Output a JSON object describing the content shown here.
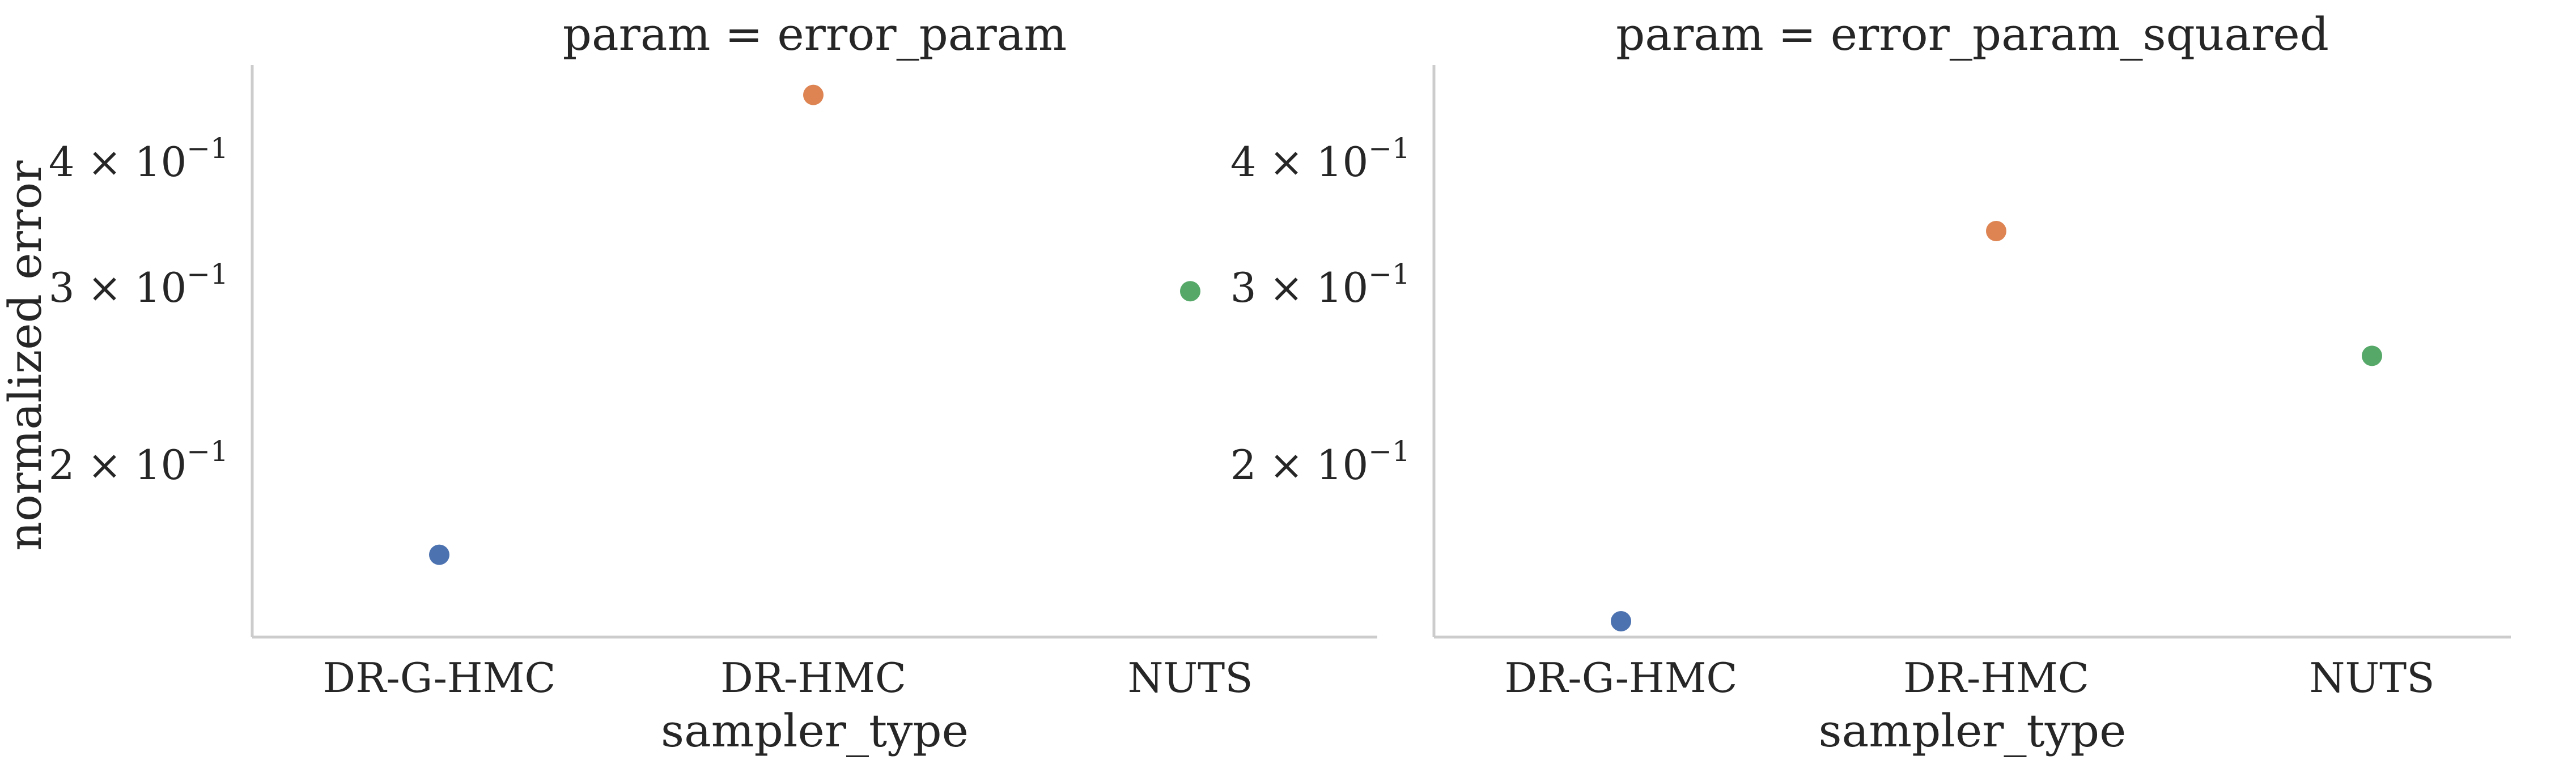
{
  "chart_data": [
    {
      "type": "scatter",
      "title": "param = error_param",
      "xlabel": "sampler_type",
      "ylabel": "normalized error",
      "yscale": "log",
      "ylim": [
        0.135,
        0.5
      ],
      "yticks": [
        0.2,
        0.3,
        0.4
      ],
      "ytick_base": "10",
      "ytick_exp": "−1",
      "ytick_mantissas": [
        "2",
        "3",
        "4"
      ],
      "categories": [
        "DR-G-HMC",
        "DR-HMC",
        "NUTS"
      ],
      "values": [
        0.163,
        0.467,
        0.298
      ],
      "colors": [
        "#4c72b0",
        "#dd8452",
        "#55a868"
      ],
      "grid": false
    },
    {
      "type": "scatter",
      "title": "param = error_param_squared",
      "xlabel": "sampler_type",
      "ylabel": "",
      "yscale": "log",
      "ylim": [
        0.135,
        0.5
      ],
      "yticks": [
        0.2,
        0.3,
        0.4
      ],
      "ytick_base": "10",
      "ytick_exp": "−1",
      "ytick_mantissas": [
        "2",
        "3",
        "4"
      ],
      "categories": [
        "DR-G-HMC",
        "DR-HMC",
        "NUTS"
      ],
      "values": [
        0.14,
        0.342,
        0.257
      ],
      "colors": [
        "#4c72b0",
        "#dd8452",
        "#55a868"
      ],
      "grid": false
    }
  ]
}
